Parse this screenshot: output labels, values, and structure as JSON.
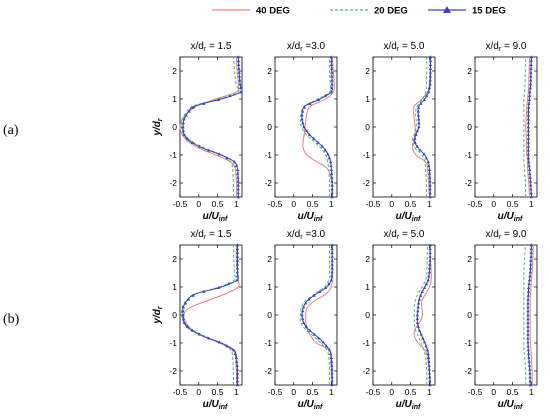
{
  "chart_data": {
    "type": "line",
    "legend": {
      "position": "top-right",
      "entries": [
        {
          "label": "40 DEG",
          "color": "#e8807f",
          "style": "solid"
        },
        {
          "label": "20 DEG",
          "color": "#4fba6f",
          "style": "dashed"
        },
        {
          "label": "15 DEG",
          "color": "#3344bb",
          "style": "solid",
          "marker": "triangle"
        }
      ]
    },
    "rows": [
      {
        "label": "(a)",
        "station_count": 4
      },
      {
        "label": "(b)",
        "station_count": 4
      }
    ],
    "x_axis": {
      "main": "u/U",
      "sub": "inf",
      "ticks": [
        -0.5,
        0,
        0.5,
        1
      ],
      "tick_labels": [
        "-0.5",
        "0",
        "0.5",
        "1"
      ],
      "xlim": [
        -0.5,
        1.15
      ]
    },
    "y_axis": {
      "main": "y/d",
      "sub": "r",
      "ticks": [
        -2,
        -1,
        0,
        1,
        2
      ],
      "tick_labels": [
        "-2",
        "-1",
        "0",
        "1",
        "2"
      ],
      "ylim": [
        -2.5,
        2.5
      ]
    },
    "y": [
      -2.5,
      -2,
      -1.5,
      -1.25,
      -1,
      -0.75,
      -0.5,
      -0.25,
      0,
      0.25,
      0.5,
      0.75,
      1,
      1.25,
      1.5,
      2,
      2.5
    ],
    "panels": [
      {
        "row": 0,
        "title_pre": "x/d",
        "title_sub": "r",
        "title_post": "= 1.5",
        "series": [
          {
            "name": "40 DEG",
            "values": [
              1.0,
              1.0,
              0.97,
              0.85,
              0.45,
              0.0,
              -0.3,
              -0.45,
              -0.5,
              -0.45,
              -0.3,
              -0.05,
              0.45,
              1.0,
              1.05,
              1.02,
              1.0
            ]
          },
          {
            "name": "20 DEG",
            "values": [
              0.92,
              0.92,
              0.9,
              0.85,
              0.6,
              0.15,
              -0.2,
              -0.4,
              -0.45,
              -0.45,
              -0.35,
              -0.15,
              0.55,
              1.05,
              1.0,
              0.95,
              0.93
            ]
          },
          {
            "name": "15 DEG",
            "values": [
              1.05,
              1.05,
              1.03,
              0.95,
              0.6,
              0.1,
              -0.25,
              -0.4,
              -0.42,
              -0.4,
              -0.3,
              -0.1,
              0.6,
              1.12,
              1.1,
              1.07,
              1.05
            ]
          }
        ]
      },
      {
        "row": 0,
        "title_pre": "x/d",
        "title_sub": "r",
        "title_post": "=3.0",
        "series": [
          {
            "name": "40 DEG",
            "values": [
              1.02,
              1.02,
              0.9,
              0.62,
              0.35,
              0.25,
              0.25,
              0.28,
              0.3,
              0.32,
              0.35,
              0.45,
              0.85,
              1.05,
              1.08,
              1.05,
              1.03
            ]
          },
          {
            "name": "20 DEG",
            "values": [
              0.95,
              0.95,
              0.93,
              0.9,
              0.85,
              0.72,
              0.52,
              0.32,
              0.2,
              0.18,
              0.2,
              0.28,
              0.65,
              0.95,
              0.97,
              0.95,
              0.95
            ]
          },
          {
            "name": "15 DEG",
            "values": [
              1.02,
              1.02,
              1.0,
              0.98,
              0.92,
              0.8,
              0.6,
              0.4,
              0.27,
              0.22,
              0.22,
              0.3,
              0.7,
              1.0,
              1.02,
              1.01,
              1.0
            ]
          }
        ]
      },
      {
        "row": 0,
        "title_pre": "x/d",
        "title_sub": "r",
        "title_post": "= 5.0",
        "series": [
          {
            "name": "40 DEG",
            "values": [
              1.0,
              0.98,
              0.95,
              0.9,
              0.65,
              0.55,
              0.58,
              0.62,
              0.62,
              0.6,
              0.58,
              0.6,
              0.8,
              0.95,
              1.0,
              1.02,
              1.02
            ]
          },
          {
            "name": "20 DEG",
            "values": [
              0.92,
              0.92,
              0.9,
              0.88,
              0.8,
              0.62,
              0.55,
              0.6,
              0.65,
              0.65,
              0.63,
              0.68,
              0.82,
              0.9,
              0.92,
              0.93,
              0.93
            ]
          },
          {
            "name": "15 DEG",
            "values": [
              1.02,
              1.02,
              1.0,
              0.97,
              0.88,
              0.7,
              0.6,
              0.65,
              0.72,
              0.72,
              0.7,
              0.72,
              0.88,
              0.98,
              1.02,
              1.03,
              1.03
            ]
          }
        ]
      },
      {
        "row": 0,
        "title_pre": "x/d",
        "title_sub": "r",
        "title_post": "= 9.0",
        "series": [
          {
            "name": "40 DEG",
            "values": [
              0.95,
              0.93,
              0.9,
              0.9,
              0.88,
              0.87,
              0.87,
              0.86,
              0.85,
              0.86,
              0.87,
              0.88,
              0.9,
              0.92,
              0.93,
              0.94,
              0.95
            ]
          },
          {
            "name": "20 DEG",
            "values": [
              0.85,
              0.84,
              0.82,
              0.8,
              0.8,
              0.8,
              0.8,
              0.8,
              0.8,
              0.8,
              0.8,
              0.8,
              0.8,
              0.82,
              0.83,
              0.84,
              0.85
            ]
          },
          {
            "name": "15 DEG",
            "values": [
              1.0,
              0.98,
              0.95,
              0.93,
              0.92,
              0.92,
              0.92,
              0.92,
              0.92,
              0.92,
              0.92,
              0.93,
              0.95,
              0.96,
              0.98,
              0.99,
              1.0
            ]
          }
        ]
      },
      {
        "row": 1,
        "title_pre": "x/d",
        "title_sub": "r",
        "title_post": "= 1.5",
        "series": [
          {
            "name": "40 DEG",
            "values": [
              1.0,
              1.0,
              0.98,
              0.9,
              0.55,
              0.1,
              -0.2,
              -0.35,
              -0.4,
              -0.25,
              0.2,
              0.7,
              1.05,
              1.05,
              1.03,
              1.0,
              1.0
            ]
          },
          {
            "name": "20 DEG",
            "values": [
              0.92,
              0.92,
              0.9,
              0.85,
              0.6,
              0.15,
              -0.2,
              -0.4,
              -0.45,
              -0.45,
              -0.35,
              -0.1,
              0.55,
              0.95,
              0.95,
              0.93,
              0.92
            ]
          },
          {
            "name": "15 DEG",
            "values": [
              1.03,
              1.03,
              1.0,
              0.93,
              0.6,
              0.1,
              -0.25,
              -0.4,
              -0.42,
              -0.42,
              -0.32,
              -0.1,
              0.6,
              1.02,
              1.03,
              1.03,
              1.03
            ]
          }
        ]
      },
      {
        "row": 1,
        "title_pre": "x/d",
        "title_sub": "r",
        "title_post": "=3.0",
        "series": [
          {
            "name": "40 DEG",
            "values": [
              1.02,
              1.0,
              0.98,
              0.95,
              0.6,
              0.45,
              0.35,
              0.32,
              0.32,
              0.35,
              0.55,
              0.85,
              1.0,
              1.02,
              1.03,
              1.02,
              1.02
            ]
          },
          {
            "name": "20 DEG",
            "values": [
              0.95,
              0.95,
              0.93,
              0.88,
              0.72,
              0.52,
              0.3,
              0.18,
              0.18,
              0.2,
              0.3,
              0.55,
              0.82,
              0.93,
              0.95,
              0.95,
              0.95
            ]
          },
          {
            "name": "15 DEG",
            "values": [
              1.02,
              1.02,
              1.0,
              0.95,
              0.8,
              0.6,
              0.38,
              0.25,
              0.22,
              0.25,
              0.35,
              0.6,
              0.88,
              1.0,
              1.02,
              1.02,
              1.02
            ]
          }
        ]
      },
      {
        "row": 1,
        "title_pre": "x/d",
        "title_sub": "r",
        "title_post": "= 5.0",
        "series": [
          {
            "name": "40 DEG",
            "values": [
              1.02,
              1.0,
              0.95,
              0.88,
              0.7,
              0.6,
              0.62,
              0.75,
              0.82,
              0.8,
              0.8,
              0.9,
              1.0,
              1.05,
              1.05,
              1.03,
              1.02
            ]
          },
          {
            "name": "20 DEG",
            "values": [
              0.93,
              0.93,
              0.9,
              0.85,
              0.78,
              0.7,
              0.62,
              0.6,
              0.6,
              0.6,
              0.62,
              0.7,
              0.8,
              0.9,
              0.93,
              0.94,
              0.95
            ]
          },
          {
            "name": "15 DEG",
            "values": [
              1.02,
              1.0,
              0.98,
              0.95,
              0.88,
              0.8,
              0.72,
              0.68,
              0.68,
              0.7,
              0.72,
              0.78,
              0.88,
              0.97,
              1.0,
              1.02,
              1.02
            ]
          }
        ]
      },
      {
        "row": 1,
        "title_pre": "x/d",
        "title_sub": "r",
        "title_post": "= 9.0",
        "series": [
          {
            "name": "40 DEG",
            "values": [
              1.02,
              1.02,
              1.0,
              0.99,
              0.98,
              0.97,
              0.97,
              0.97,
              0.97,
              0.97,
              0.97,
              0.98,
              0.99,
              1.0,
              1.02,
              1.04,
              1.05
            ]
          },
          {
            "name": "20 DEG",
            "values": [
              0.85,
              0.85,
              0.82,
              0.8,
              0.8,
              0.8,
              0.8,
              0.8,
              0.8,
              0.8,
              0.8,
              0.8,
              0.8,
              0.8,
              0.8,
              0.82,
              0.84
            ]
          },
          {
            "name": "15 DEG",
            "values": [
              0.97,
              0.96,
              0.93,
              0.92,
              0.91,
              0.91,
              0.91,
              0.91,
              0.91,
              0.91,
              0.91,
              0.92,
              0.93,
              0.95,
              0.97,
              0.99,
              1.0
            ]
          }
        ]
      }
    ]
  }
}
